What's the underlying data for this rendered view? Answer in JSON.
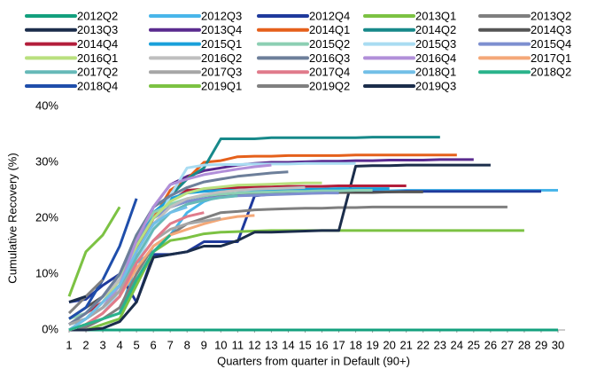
{
  "chart_data": {
    "type": "line",
    "xlabel": "Quarters from quarter in Default (90+)",
    "ylabel": "Cumulative Recovery (%)",
    "x": [
      1,
      2,
      3,
      4,
      5,
      6,
      7,
      8,
      9,
      10,
      11,
      12,
      13,
      14,
      15,
      16,
      17,
      18,
      19,
      20,
      21,
      22,
      23,
      24,
      25,
      26,
      27,
      28,
      29,
      30
    ],
    "xlim": [
      1,
      30
    ],
    "xticks": [
      1,
      2,
      3,
      4,
      5,
      6,
      7,
      8,
      9,
      10,
      11,
      12,
      13,
      14,
      15,
      16,
      17,
      18,
      19,
      20,
      21,
      22,
      23,
      24,
      25,
      26,
      27,
      28,
      29,
      30
    ],
    "ylim": [
      0,
      40
    ],
    "yticks": [
      {
        "value": 0,
        "label": "0%"
      },
      {
        "value": 10,
        "label": "10%"
      },
      {
        "value": 20,
        "label": "20%"
      },
      {
        "value": 30,
        "label": "30%"
      },
      {
        "value": 40,
        "label": "40%"
      }
    ],
    "grid": false,
    "legend": "top",
    "series": [
      {
        "name": "2012Q2",
        "color": "#13a07e",
        "values": [
          0,
          0,
          0,
          0,
          0,
          0,
          0,
          0,
          0,
          0,
          0,
          0,
          0,
          0,
          0,
          0,
          0,
          0,
          0,
          0,
          0,
          0,
          0,
          0,
          0,
          0,
          0,
          0,
          0,
          0
        ]
      },
      {
        "name": "2012Q3",
        "color": "#49b6ea",
        "values": [
          0,
          1,
          2,
          3,
          12,
          14,
          17,
          21,
          23,
          24,
          24.5,
          24.5,
          24.6,
          24.7,
          24.7,
          24.8,
          24.8,
          24.8,
          24.9,
          24.9,
          25,
          25,
          25,
          25,
          25,
          25,
          25,
          25,
          25,
          25
        ]
      },
      {
        "name": "2012Q4",
        "color": "#1f3a9c",
        "values": [
          5,
          5.5,
          8,
          10,
          5,
          13.5,
          13.5,
          14,
          15.8,
          15.8,
          15.8,
          24,
          24.3,
          24.5,
          24.5,
          24.6,
          24.6,
          24.7,
          24.7,
          24.7,
          24.8,
          24.8,
          24.8,
          24.8,
          24.8,
          24.8,
          24.8,
          24.8,
          24.8,
          null
        ]
      },
      {
        "name": "2013Q1",
        "color": "#7cc243",
        "values": [
          0,
          0,
          1,
          2,
          8,
          14,
          16,
          16.5,
          17.2,
          17.5,
          17.6,
          17.7,
          17.8,
          17.8,
          17.8,
          17.8,
          17.8,
          17.8,
          17.8,
          17.8,
          17.8,
          17.8,
          17.8,
          17.8,
          17.8,
          17.8,
          17.8,
          17.8,
          null,
          null
        ]
      },
      {
        "name": "2013Q2",
        "color": "#7f7f7f",
        "values": [
          0,
          0.5,
          2,
          4,
          10,
          15,
          17,
          19,
          20,
          21,
          21.2,
          21.5,
          21.6,
          21.7,
          21.8,
          21.8,
          21.9,
          21.9,
          22,
          22,
          22,
          22,
          22,
          22,
          22,
          22,
          22,
          null,
          null,
          null
        ]
      },
      {
        "name": "2013Q3",
        "color": "#1b2d4b",
        "values": [
          0,
          0,
          0.3,
          1.5,
          5,
          13,
          13.5,
          14,
          15,
          15,
          16,
          17.5,
          17.5,
          17.6,
          17.7,
          17.8,
          17.8,
          29.3,
          29.4,
          29.4,
          29.5,
          29.5,
          29.5,
          29.5,
          29.5,
          29.5,
          null,
          null,
          null,
          null
        ]
      },
      {
        "name": "2013Q4",
        "color": "#5a2b8f",
        "values": [
          1,
          3,
          6,
          10,
          16,
          22,
          26,
          27.5,
          28.5,
          29,
          29.5,
          29.8,
          30,
          30,
          30.1,
          30.2,
          30.2,
          30.3,
          30.3,
          30.4,
          30.4,
          30.4,
          30.5,
          30.5,
          30.5,
          null,
          null,
          null,
          null,
          null
        ]
      },
      {
        "name": "2014Q1",
        "color": "#e5601b",
        "values": [
          0,
          1,
          3,
          6,
          14,
          20,
          25,
          27,
          30,
          30.3,
          31,
          31.1,
          31.1,
          31.2,
          31.2,
          31.2,
          31.2,
          31.3,
          31.3,
          31.3,
          31.3,
          31.3,
          31.3,
          31.3,
          null,
          null,
          null,
          null,
          null,
          null
        ]
      },
      {
        "name": "2014Q2",
        "color": "#17898a",
        "values": [
          1,
          2,
          4,
          8,
          15,
          22,
          24,
          27,
          29,
          34.2,
          34.2,
          34.2,
          34.4,
          34.4,
          34.4,
          34.4,
          34.4,
          34.4,
          34.5,
          34.5,
          34.5,
          34.5,
          34.5,
          null,
          null,
          null,
          null,
          null,
          null,
          null
        ]
      },
      {
        "name": "2014Q3",
        "color": "#555555",
        "values": [
          2,
          4,
          6,
          9,
          15,
          20,
          22,
          23,
          23.5,
          24,
          24.2,
          24.3,
          24.4,
          24.5,
          24.5,
          24.5,
          24.6,
          24.6,
          24.6,
          24.7,
          24.7,
          24.7,
          null,
          null,
          null,
          null,
          null,
          null,
          null,
          null
        ]
      },
      {
        "name": "2014Q4",
        "color": "#b31e3b",
        "values": [
          1,
          3,
          5,
          8,
          14,
          20,
          23,
          25,
          25.2,
          25.4,
          25.5,
          25.6,
          25.6,
          25.7,
          25.7,
          25.7,
          25.8,
          25.8,
          25.8,
          25.8,
          25.8,
          null,
          null,
          null,
          null,
          null,
          null,
          null,
          null,
          null
        ]
      },
      {
        "name": "2015Q1",
        "color": "#1aa0da",
        "values": [
          1,
          2,
          5,
          9,
          16,
          21,
          23.5,
          24.5,
          24.8,
          25,
          25,
          25.1,
          25.1,
          25.2,
          25.2,
          25.2,
          25.3,
          25.3,
          25.3,
          25.3,
          null,
          null,
          null,
          null,
          null,
          null,
          null,
          null,
          null,
          null
        ]
      },
      {
        "name": "2015Q2",
        "color": "#8ccfb3",
        "values": [
          2,
          3,
          6,
          10,
          17,
          21,
          22.5,
          23.5,
          24,
          24.3,
          24.5,
          24.6,
          24.7,
          24.8,
          24.8,
          24.9,
          24.9,
          25,
          25,
          null,
          null,
          null,
          null,
          null,
          null,
          null,
          null,
          null,
          null,
          null
        ]
      },
      {
        "name": "2015Q3",
        "color": "#a9dcf2",
        "values": [
          0,
          1,
          3,
          7,
          12,
          18,
          24,
          29,
          29.5,
          29.6,
          29.6,
          29.7,
          29.7,
          29.7,
          29.8,
          29.8,
          29.8,
          29.8,
          null,
          null,
          null,
          null,
          null,
          null,
          null,
          null,
          null,
          null,
          null,
          null
        ]
      },
      {
        "name": "2015Q4",
        "color": "#7d8fd0",
        "values": [
          1,
          3,
          6,
          10,
          16,
          20,
          22,
          23,
          23.5,
          23.8,
          24,
          24.1,
          24.2,
          24.3,
          24.4,
          24.5,
          24.5,
          null,
          null,
          null,
          null,
          null,
          null,
          null,
          null,
          null,
          null,
          null,
          null,
          null
        ]
      },
      {
        "name": "2016Q1",
        "color": "#b9e07e",
        "values": [
          0,
          2,
          5,
          9,
          15,
          20,
          23,
          24.5,
          25.3,
          25.6,
          25.9,
          26,
          26.1,
          26.2,
          26.3,
          26.3,
          null,
          null,
          null,
          null,
          null,
          null,
          null,
          null,
          null,
          null,
          null,
          null,
          null,
          null
        ]
      },
      {
        "name": "2016Q2",
        "color": "#bfbfbf",
        "values": [
          1,
          3,
          6,
          9,
          14,
          19,
          22,
          23.5,
          24.2,
          24.7,
          25,
          25.2,
          25.3,
          25.4,
          25.5,
          null,
          null,
          null,
          null,
          null,
          null,
          null,
          null,
          null,
          null,
          null,
          null,
          null,
          null,
          null
        ]
      },
      {
        "name": "2016Q3",
        "color": "#6d7f9a",
        "values": [
          1,
          3,
          6,
          10,
          17,
          22,
          24,
          25.5,
          26.5,
          27,
          27.5,
          27.8,
          28.1,
          28.3,
          null,
          null,
          null,
          null,
          null,
          null,
          null,
          null,
          null,
          null,
          null,
          null,
          null,
          null,
          null,
          null
        ]
      },
      {
        "name": "2016Q4",
        "color": "#b18fd9",
        "values": [
          0,
          2,
          4,
          8,
          16,
          22,
          26,
          27,
          27.8,
          28.3,
          28.8,
          29.2,
          29.5,
          null,
          null,
          null,
          null,
          null,
          null,
          null,
          null,
          null,
          null,
          null,
          null,
          null,
          null,
          null,
          null,
          null
        ]
      },
      {
        "name": "2017Q1",
        "color": "#f4a878",
        "values": [
          0,
          1,
          3,
          6,
          11,
          15,
          17,
          18,
          19,
          19.8,
          20.3,
          20.5,
          null,
          null,
          null,
          null,
          null,
          null,
          null,
          null,
          null,
          null,
          null,
          null,
          null,
          null,
          null,
          null,
          null,
          null
        ]
      },
      {
        "name": "2017Q2",
        "color": "#66b9b8",
        "values": [
          0,
          2,
          4,
          7,
          13,
          18,
          21,
          22.5,
          23.2,
          23.7,
          24,
          null,
          null,
          null,
          null,
          null,
          null,
          null,
          null,
          null,
          null,
          null,
          null,
          null,
          null,
          null,
          null,
          null,
          null,
          null
        ]
      },
      {
        "name": "2017Q3",
        "color": "#a6a6a6",
        "values": [
          1,
          2,
          4,
          7,
          12,
          16,
          18,
          19,
          19.5,
          20,
          null,
          null,
          null,
          null,
          null,
          null,
          null,
          null,
          null,
          null,
          null,
          null,
          null,
          null,
          null,
          null,
          null,
          null,
          null,
          null
        ]
      },
      {
        "name": "2017Q4",
        "color": "#e07b8b",
        "values": [
          0,
          1,
          3,
          6,
          12,
          16,
          19,
          20.3,
          21,
          null,
          null,
          null,
          null,
          null,
          null,
          null,
          null,
          null,
          null,
          null,
          null,
          null,
          null,
          null,
          null,
          null,
          null,
          null,
          null,
          null
        ]
      },
      {
        "name": "2018Q1",
        "color": "#72bfe7",
        "values": [
          0,
          2,
          5,
          8,
          14,
          19,
          21,
          22,
          null,
          null,
          null,
          null,
          null,
          null,
          null,
          null,
          null,
          null,
          null,
          null,
          null,
          null,
          null,
          null,
          null,
          null,
          null,
          null,
          null,
          null
        ]
      },
      {
        "name": "2018Q2",
        "color": "#2ab38b",
        "values": [
          0,
          1,
          2,
          3,
          9,
          14,
          17,
          null,
          null,
          null,
          null,
          null,
          null,
          null,
          null,
          null,
          null,
          null,
          null,
          null,
          null,
          null,
          null,
          null,
          null,
          null,
          null,
          null,
          null,
          null
        ]
      },
      {
        "name": "2018Q4",
        "color": "#1f4eab",
        "values": [
          2,
          4,
          9,
          15,
          23.5,
          null,
          null,
          null,
          null,
          null,
          null,
          null,
          null,
          null,
          null,
          null,
          null,
          null,
          null,
          null,
          null,
          null,
          null,
          null,
          null,
          null,
          null,
          null,
          null,
          null
        ]
      },
      {
        "name": "2019Q1",
        "color": "#7cc243",
        "values": [
          6,
          14,
          17,
          22,
          null,
          null,
          null,
          null,
          null,
          null,
          null,
          null,
          null,
          null,
          null,
          null,
          null,
          null,
          null,
          null,
          null,
          null,
          null,
          null,
          null,
          null,
          null,
          null,
          null,
          null
        ]
      },
      {
        "name": "2019Q2",
        "color": "#808080",
        "values": [
          3,
          6,
          9,
          null,
          null,
          null,
          null,
          null,
          null,
          null,
          null,
          null,
          null,
          null,
          null,
          null,
          null,
          null,
          null,
          null,
          null,
          null,
          null,
          null,
          null,
          null,
          null,
          null,
          null,
          null
        ]
      },
      {
        "name": "2019Q3",
        "color": "#1b2d4b",
        "values": [
          5,
          6,
          null,
          null,
          null,
          null,
          null,
          null,
          null,
          null,
          null,
          null,
          null,
          null,
          null,
          null,
          null,
          null,
          null,
          null,
          null,
          null,
          null,
          null,
          null,
          null,
          null,
          null,
          null,
          null
        ]
      }
    ]
  }
}
